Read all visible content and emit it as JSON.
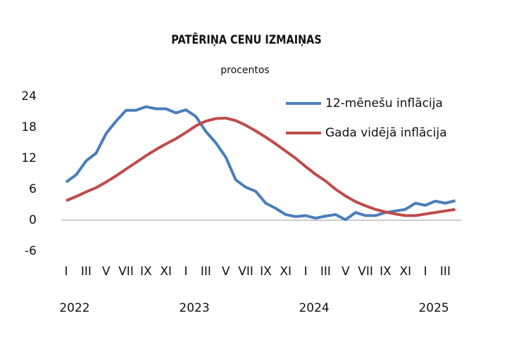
{
  "chart_data": {
    "type": "line",
    "title": "PATĒRIŅA CENU IZMAIŅAS",
    "subtitle": "procentos",
    "categories": [
      "I",
      null,
      "III",
      null,
      "V",
      null,
      "VII",
      null,
      "IX",
      null,
      "XI",
      null,
      "I",
      null,
      "III",
      null,
      "V",
      null,
      "VII",
      null,
      "IX",
      null,
      "XI",
      null,
      "I",
      null,
      "III",
      null,
      "V",
      null,
      "VII",
      null,
      "IX",
      null,
      "XI",
      null,
      "I",
      null,
      "III",
      null
    ],
    "years": [
      "2022",
      "2023",
      "2024",
      "2025"
    ],
    "series": [
      {
        "name": "12-mēnešu inflācija",
        "color": "#4a7ebb",
        "values": [
          7.4,
          8.8,
          11.5,
          13,
          16.8,
          19.2,
          21.3,
          21.3,
          22,
          21.6,
          21.6,
          20.8,
          21.4,
          20.1,
          17.2,
          15,
          12.2,
          7.8,
          6.4,
          5.6,
          3.3,
          2.3,
          1.1,
          0.7,
          0.9,
          0.4,
          0.8,
          1.1,
          0.1,
          1.5,
          0.9,
          0.9,
          1.5,
          1.8,
          2.1,
          3.3,
          2.9,
          3.7,
          3.3,
          3.8
        ]
      },
      {
        "name": "Gada vidējā inflācija",
        "color": "#be4b48",
        "values": [
          3.8,
          4.6,
          5.5,
          6.3,
          7.4,
          8.6,
          9.9,
          11.2,
          12.5,
          13.7,
          14.8,
          15.8,
          17,
          18.3,
          19.2,
          19.7,
          19.8,
          19.3,
          18.4,
          17.3,
          16.1,
          14.8,
          13.4,
          12,
          10.4,
          8.9,
          7.6,
          6,
          4.7,
          3.6,
          2.8,
          2.1,
          1.6,
          1.2,
          0.9,
          0.9,
          1.2,
          1.5,
          1.8,
          2.1
        ]
      }
    ],
    "ylim": [
      -6,
      24
    ],
    "yticks": [
      24,
      18,
      12,
      6,
      0,
      -6
    ],
    "legend": "top-right",
    "grid": false
  }
}
